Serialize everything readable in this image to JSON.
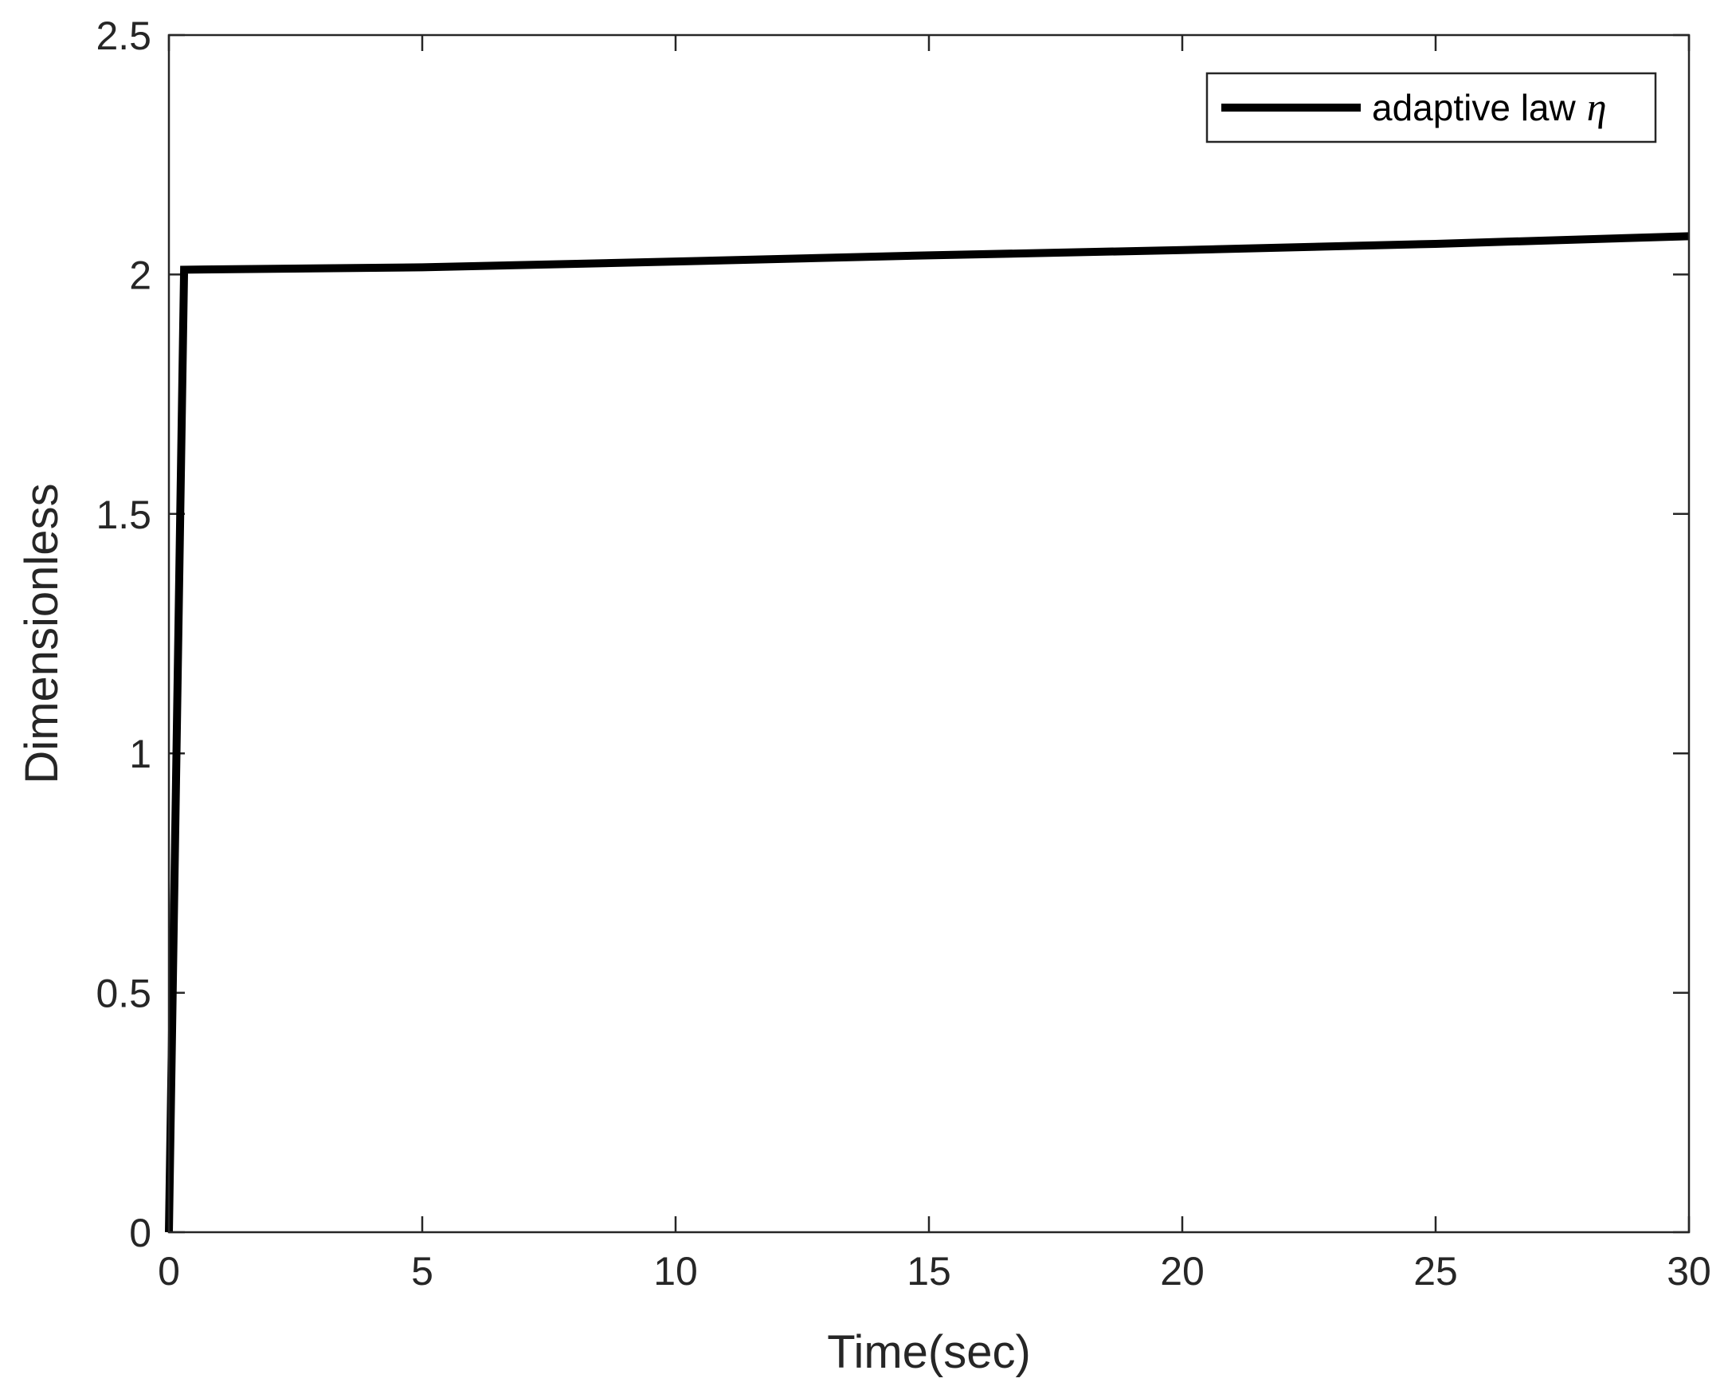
{
  "chart_data": {
    "type": "line",
    "xlabel": "Time(sec)",
    "ylabel": "Dimensionless",
    "xlim": [
      0,
      30
    ],
    "ylim": [
      0,
      2.5
    ],
    "xticks": [
      0,
      5,
      10,
      15,
      20,
      25,
      30
    ],
    "xtick_labels": [
      "0",
      "5",
      "10",
      "15",
      "20",
      "25",
      "30"
    ],
    "yticks": [
      0,
      0.5,
      1,
      1.5,
      2,
      2.5
    ],
    "ytick_labels": [
      "0",
      "0.5",
      "1",
      "1.5",
      "2",
      "2.5"
    ],
    "grid": false,
    "legend_position": "top-right",
    "legend": {
      "label": "adaptive law",
      "symbol": "η"
    },
    "series": [
      {
        "name": "adaptive law η",
        "color": "#000000",
        "x": [
          0,
          0.3,
          5,
          10,
          15,
          20,
          25,
          30
        ],
        "y": [
          0,
          2.01,
          2.015,
          2.027,
          2.04,
          2.051,
          2.064,
          2.08
        ]
      }
    ]
  }
}
